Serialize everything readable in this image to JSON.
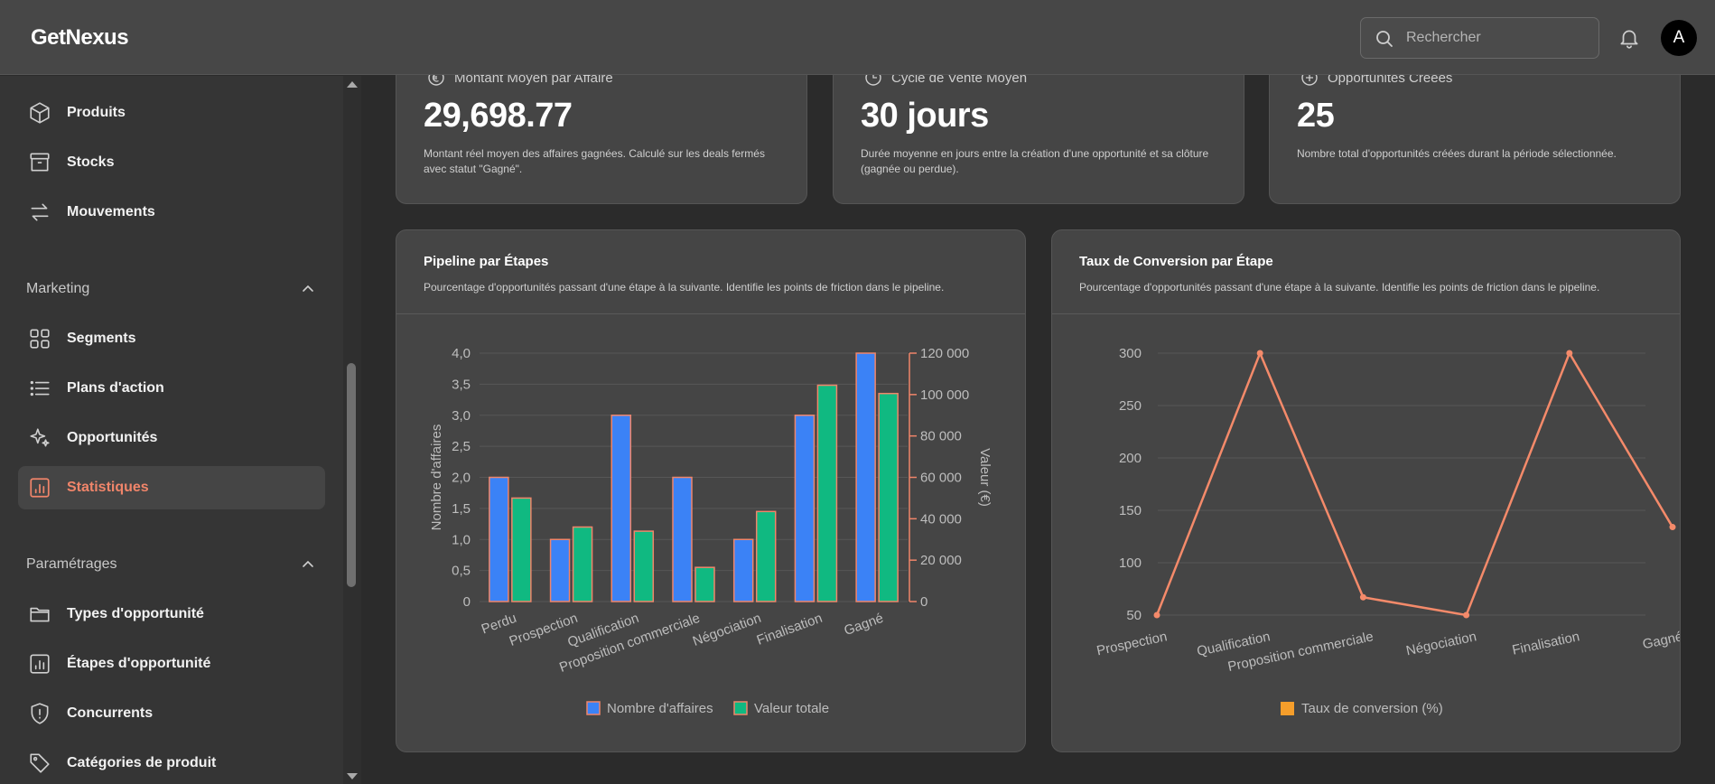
{
  "header": {
    "brand": "GetNexus",
    "search_placeholder": "Rechercher",
    "avatar_initial": "A"
  },
  "sidebar": {
    "items_top": [
      {
        "label": "Produits",
        "icon": "cube-icon"
      },
      {
        "label": "Stocks",
        "icon": "archive-icon"
      },
      {
        "label": "Mouvements",
        "icon": "arrows-swap-icon"
      }
    ],
    "marketing": {
      "title": "Marketing",
      "items": [
        {
          "label": "Segments",
          "icon": "grid-icon"
        },
        {
          "label": "Plans d'action",
          "icon": "list-icon"
        },
        {
          "label": "Opportunités",
          "icon": "sparkles-icon"
        },
        {
          "label": "Statistiques",
          "icon": "bar-chart-icon",
          "active": true
        }
      ]
    },
    "settings": {
      "title": "Paramétrages",
      "items": [
        {
          "label": "Types d'opportunité",
          "icon": "folder-icon"
        },
        {
          "label": "Étapes d'opportunité",
          "icon": "bar-chart-icon"
        },
        {
          "label": "Concurrents",
          "icon": "shield-alert-icon"
        },
        {
          "label": "Catégories de produit",
          "icon": "tag-icon"
        }
      ]
    }
  },
  "stats": [
    {
      "title": "Montant Moyen par Affaire",
      "value": "29,698.77",
      "desc": "Montant réel moyen des affaires gagnées. Calculé sur les deals fermés avec statut \"Gagné\".",
      "icon": "euro-icon"
    },
    {
      "title": "Cycle de Vente Moyen",
      "value": "30 jours",
      "desc": "Durée moyenne en jours entre la création d'une opportunité et sa clôture (gagnée ou perdue).",
      "icon": "clock-icon"
    },
    {
      "title": "Opportunités Créées",
      "value": "25",
      "desc": "Nombre total d'opportunités créées durant la période sélectionnée.",
      "icon": "plus-circle-icon"
    }
  ],
  "colors": {
    "accent": "#f0856a",
    "blue": "#3b82f6",
    "green": "#10b981",
    "line": "#f48a6a",
    "legend_orange": "#f59e2b"
  },
  "chart_data": [
    {
      "type": "bar",
      "title": "Pipeline par Étapes",
      "subtitle": "Pourcentage d'opportunités passant d'une étape à la suivante. Identifie les points de friction dans le pipeline.",
      "categories": [
        "Perdu",
        "Prospection",
        "Qualification",
        "Proposition commerciale",
        "Négociation",
        "Finalisation",
        "Gagné"
      ],
      "series": [
        {
          "name": "Nombre d'affaires",
          "axis": "left",
          "values": [
            2,
            1,
            3,
            2,
            1,
            3,
            4
          ]
        },
        {
          "name": "Valeur totale",
          "axis": "right",
          "values": [
            50000,
            36000,
            34000,
            16500,
            43500,
            104500,
            100500
          ]
        }
      ],
      "ylabel": "Nombre d'affaires",
      "y2label": "Valeur (€)",
      "ylim": [
        0,
        4
      ],
      "y2lim": [
        0,
        120000
      ],
      "yticks": [
        "0",
        "0,5",
        "1,0",
        "1,5",
        "2,0",
        "2,5",
        "3,0",
        "3,5",
        "4,0"
      ],
      "y2ticks": [
        "0",
        "20 000",
        "40 000",
        "60 000",
        "80 000",
        "100 000",
        "120 000"
      ],
      "grid": true,
      "legend": "bottom"
    },
    {
      "type": "line",
      "title": "Taux de Conversion par Étape",
      "subtitle": "Pourcentage d'opportunités passant d'une étape à la suivante. Identifie les points de friction dans le pipeline.",
      "categories": [
        "Prospection",
        "Qualification",
        "Proposition commerciale",
        "Négociation",
        "Finalisation",
        "Gagné"
      ],
      "series": [
        {
          "name": "Taux de conversion (%)",
          "values": [
            50,
            300,
            67,
            50,
            300,
            134
          ]
        }
      ],
      "ylim": [
        50,
        300
      ],
      "yticks": [
        "50",
        "100",
        "150",
        "200",
        "250",
        "300"
      ],
      "grid": true,
      "legend": "bottom"
    }
  ]
}
